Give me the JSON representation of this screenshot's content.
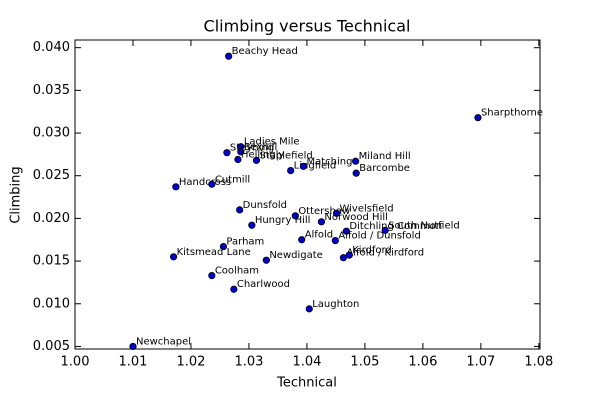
{
  "chart_data": {
    "type": "scatter",
    "title": "Climbing versus Technical",
    "xlabel": "Technical",
    "ylabel": "Climbing",
    "labels": [
      "Newchapel",
      "Beachy Head",
      "Sharpthorne",
      "Ladies Mile",
      "Bexhill",
      "Steyning",
      "Hellingly",
      "Staplefield",
      "Lingfield",
      "Matching",
      "Miland Hill",
      "Barcombe",
      "Handcross",
      "Cutmill",
      "Dunsfold",
      "Ottershaw",
      "Wivelsfield",
      "Norwood Hill",
      "Hungry Hill",
      "Ditchling Common",
      "South Nutfield",
      "Alfold",
      "Alfold / Dunsfold",
      "Parham",
      "Kitsmead Lane",
      "Newdigate",
      "Alfold / Kirdford",
      "Kirdford",
      "Coolham",
      "Charlwood",
      "Laughton"
    ],
    "x": [
      1.01,
      1.0265,
      1.0695,
      1.0286,
      1.0286,
      1.0262,
      1.0281,
      1.0313,
      1.0372,
      1.0394,
      1.0484,
      1.0485,
      1.0174,
      1.0236,
      1.0284,
      1.038,
      1.0451,
      1.0425,
      1.0305,
      1.0468,
      1.0535,
      1.0391,
      1.0449,
      1.0256,
      1.017,
      1.033,
      1.0463,
      1.0473,
      1.0236,
      1.0274,
      1.0404
    ],
    "values": [
      0.005,
      0.039,
      0.0318,
      0.0284,
      0.0278,
      0.0277,
      0.0269,
      0.0268,
      0.0256,
      0.0261,
      0.0267,
      0.0253,
      0.0237,
      0.024,
      0.021,
      0.0203,
      0.0206,
      0.0196,
      0.0192,
      0.0185,
      0.0186,
      0.0175,
      0.0174,
      0.0167,
      0.0155,
      0.0151,
      0.0154,
      0.0157,
      0.0133,
      0.0117,
      0.0094
    ],
    "color": "#0000cc",
    "xlim": [
      1.0,
      1.0802
    ],
    "ylim": [
      0.0047,
      0.0409
    ],
    "xticks": [
      {
        "value": 1.0,
        "label": "1.00"
      },
      1.01,
      1.02,
      1.03,
      1.04,
      1.05,
      1.06,
      1.07,
      1.08
    ],
    "yticks": [
      0.005,
      {
        "value": 0.01,
        "label": "0.010"
      },
      0.015,
      {
        "value": 0.02,
        "label": "0.020"
      },
      0.025,
      {
        "value": 0.03,
        "label": "0.030"
      },
      0.035,
      {
        "value": 0.04,
        "label": "0.040"
      }
    ]
  }
}
